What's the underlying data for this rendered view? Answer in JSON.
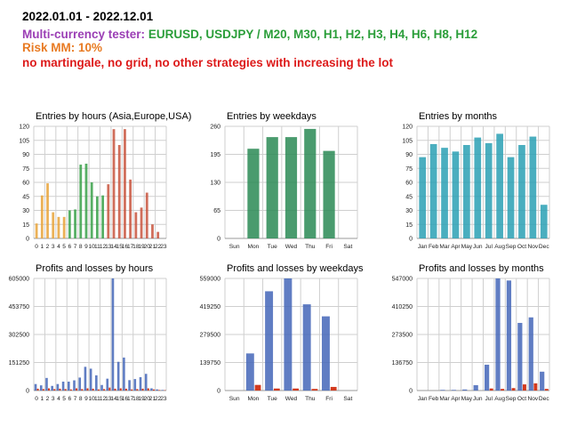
{
  "header": {
    "period": "2022.01.01 - 2022.12.01",
    "tester_label": "Multi-currency tester:",
    "tester_value": "EURUSD, USDJPY / M20, M30, H1, H2, H3, H4, H6, H8, H12",
    "risk": "Risk MM: 10%",
    "warning": "no martingale, no grid, no other strategies with increasing the lot"
  },
  "colors": {
    "orange": "#e8a33a",
    "green": "#3aa14a",
    "red": "#c8553e",
    "darkgreen": "#2a8a55",
    "teal": "#2aa0b4",
    "blue": "#4466b8",
    "loss": "#d23a1e"
  },
  "chart_data": [
    {
      "type": "bar",
      "title": "Entries by hours (Asia,Europe,USA)",
      "categories": [
        "0",
        "1",
        "2",
        "3",
        "4",
        "5",
        "6",
        "7",
        "8",
        "9",
        "10",
        "11",
        "12",
        "13",
        "14",
        "15",
        "16",
        "17",
        "18",
        "19",
        "20",
        "21",
        "22",
        "23"
      ],
      "values": [
        16,
        46,
        59,
        28,
        23,
        23,
        30,
        31,
        79,
        80,
        60,
        45,
        46,
        58,
        117,
        100,
        117,
        63,
        28,
        33,
        49,
        15,
        7,
        0
      ],
      "ylim": [
        0,
        120
      ],
      "yticks": [
        "0",
        "15",
        "30",
        "45",
        "60",
        "75",
        "90",
        "105",
        "120"
      ]
    },
    {
      "type": "bar",
      "title": "Entries by weekdays",
      "categories": [
        "Sun",
        "Mon",
        "Tue",
        "Wed",
        "Thu",
        "Fri",
        "Sat"
      ],
      "values": [
        0,
        208,
        235,
        235,
        254,
        203,
        0
      ],
      "ylim": [
        0,
        260
      ],
      "yticks": [
        "0",
        "65",
        "130",
        "195",
        "260"
      ]
    },
    {
      "type": "bar",
      "title": "Entries by months",
      "categories": [
        "Jan",
        "Feb",
        "Mar",
        "Apr",
        "May",
        "Jun",
        "Jul",
        "Aug",
        "Sep",
        "Oct",
        "Nov",
        "Dec"
      ],
      "values": [
        87,
        101,
        97,
        93,
        100,
        108,
        102,
        112,
        87,
        100,
        109,
        36
      ],
      "ylim": [
        0,
        120
      ],
      "yticks": [
        "0",
        "15",
        "30",
        "45",
        "60",
        "75",
        "90",
        "105",
        "120"
      ]
    },
    {
      "type": "bar",
      "title": "Profits and losses by hours",
      "categories": [
        "0",
        "1",
        "2",
        "3",
        "4",
        "5",
        "6",
        "7",
        "8",
        "9",
        "10",
        "11",
        "12",
        "13",
        "14",
        "15",
        "16",
        "17",
        "18",
        "19",
        "20",
        "21",
        "22",
        "23"
      ],
      "series": [
        {
          "values": [
            35000,
            28000,
            68000,
            25000,
            35000,
            48000,
            48000,
            55000,
            70000,
            128000,
            118000,
            82000,
            30000,
            64000,
            605000,
            155000,
            178000,
            56000,
            62000,
            72000,
            90000,
            12000,
            6000,
            3000
          ]
        },
        {
          "values": [
            10000,
            8000,
            12000,
            8000,
            10000,
            8000,
            6000,
            12000,
            8000,
            12000,
            10000,
            6000,
            8000,
            16000,
            10000,
            12000,
            10000,
            6000,
            8000,
            10000,
            12000,
            6000,
            3000,
            2000
          ]
        }
      ],
      "ylim": [
        0,
        605000
      ],
      "yticks": [
        "0",
        "151250",
        "302500",
        "453750",
        "605000"
      ]
    },
    {
      "type": "bar",
      "title": "Profits and losses by weekdays",
      "categories": [
        "Sun",
        "Mon",
        "Tue",
        "Wed",
        "Thu",
        "Fri",
        "Sat"
      ],
      "series": [
        {
          "values": [
            0,
            185000,
            495000,
            559000,
            430000,
            370000,
            0
          ]
        },
        {
          "values": [
            0,
            28000,
            10000,
            10000,
            8000,
            18000,
            0
          ]
        }
      ],
      "ylim": [
        0,
        559000
      ],
      "yticks": [
        "0",
        "139750",
        "279500",
        "419250",
        "559000"
      ]
    },
    {
      "type": "bar",
      "title": "Profits and losses by months",
      "categories": [
        "Jan",
        "Feb",
        "Mar",
        "Apr",
        "May",
        "Jun",
        "Jul",
        "Aug",
        "Sep",
        "Oct",
        "Nov",
        "Dec"
      ],
      "series": [
        {
          "values": [
            0,
            0,
            3000,
            3000,
            5000,
            26000,
            126000,
            547000,
            537000,
            330000,
            357000,
            92000
          ]
        },
        {
          "values": [
            0,
            0,
            0,
            0,
            0,
            0,
            10000,
            8000,
            12000,
            30000,
            35000,
            8000
          ]
        }
      ],
      "ylim": [
        0,
        547000
      ],
      "yticks": [
        "0",
        "136750",
        "273500",
        "410250",
        "547000"
      ]
    }
  ]
}
